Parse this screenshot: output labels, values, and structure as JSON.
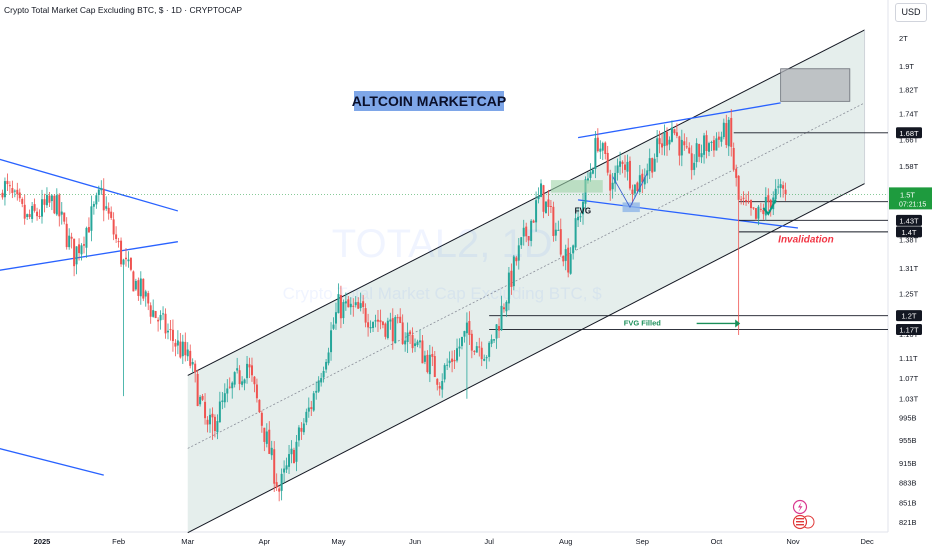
{
  "header": {
    "title": "Crypto Total Market Cap Excluding BTC, $ · 1D · CRYPTOCAP",
    "currency_button": "USD"
  },
  "watermark": {
    "symbol": "TOTAL2, 1D",
    "description": "Crypto Total Market Cap Excluding BTC, $"
  },
  "icons": [
    "lightning-icon",
    "flag-icon"
  ],
  "colors": {
    "up": "#26a69a",
    "down": "#ef5350",
    "blue_line": "#2962ff",
    "channel_fill": "#e0ebe9",
    "label_box": "#7ea6e8",
    "invalidation": "#f23645",
    "last_price": "#1e9b3e",
    "fvg_filled": "#1b8f5a",
    "check": "#089981"
  },
  "chart_data": {
    "type": "candlestick",
    "title": "ALTCOIN MARKETCAP",
    "x_axis": {
      "tick_labels": [
        "2025",
        "Feb",
        "Mar",
        "Apr",
        "May",
        "Jun",
        "Jul",
        "Aug",
        "Sep",
        "Oct",
        "Nov",
        "Dec"
      ],
      "range": [
        "2024-12-15",
        "2025-12-05"
      ]
    },
    "y_axis": {
      "scale": "log",
      "range": [
        0.805,
        2.07
      ],
      "tick_labels": [
        "2T",
        "1.9T",
        "1.82T",
        "1.74T",
        "1.66T",
        "1.58T",
        "1.5T",
        "1.38T",
        "1.31T",
        "1.25T",
        "1.16T",
        "1.11T",
        "1.07T",
        "1.03T",
        "995B",
        "955B",
        "915B",
        "883B",
        "851B",
        "821B"
      ]
    },
    "price_path_trillions": {
      "dates": [
        "2024-12-16",
        "2024-12-26",
        "2025-01-06",
        "2025-01-14",
        "2025-01-25",
        "2025-02-03",
        "2025-02-16",
        "2025-03-02",
        "2025-03-09",
        "2025-03-25",
        "2025-04-07",
        "2025-04-20",
        "2025-05-01",
        "2025-05-14",
        "2025-05-31",
        "2025-06-11",
        "2025-06-22",
        "2025-07-01",
        "2025-07-12",
        "2025-07-22",
        "2025-08-02",
        "2025-08-14",
        "2025-08-20",
        "2025-08-24",
        "2025-08-29",
        "2025-09-13",
        "2025-09-20",
        "2025-09-26",
        "2025-10-06",
        "2025-10-10",
        "2025-10-17",
        "2025-10-24",
        "2025-10-29"
      ],
      "values": [
        1.53,
        1.43,
        1.48,
        1.34,
        1.5,
        1.32,
        1.2,
        1.1,
        0.97,
        1.1,
        0.87,
        1.02,
        1.22,
        1.2,
        1.15,
        1.07,
        1.16,
        1.12,
        1.33,
        1.5,
        1.33,
        1.66,
        1.52,
        1.61,
        1.52,
        1.7,
        1.58,
        1.64,
        1.68,
        1.48,
        1.43,
        1.5,
        1.5
      ]
    },
    "levels": [
      {
        "label": "1.68T",
        "value": 1.68
      },
      {
        "label": "1.48T",
        "value": 1.48
      },
      {
        "label": "1.43T",
        "value": 1.43
      },
      {
        "label": "1.4T",
        "value": 1.4
      },
      {
        "label": "1.2T",
        "value": 1.2
      },
      {
        "label": "1.17T",
        "value": 1.17
      }
    ],
    "last_price": {
      "label": "1.5T",
      "countdown": "07:21:15",
      "value": 1.5
    },
    "annotations": {
      "fvg": "FVG",
      "fvg_filled": "FVG Filled",
      "invalidation": "Invalidation"
    },
    "legend": "none",
    "grid": false
  }
}
